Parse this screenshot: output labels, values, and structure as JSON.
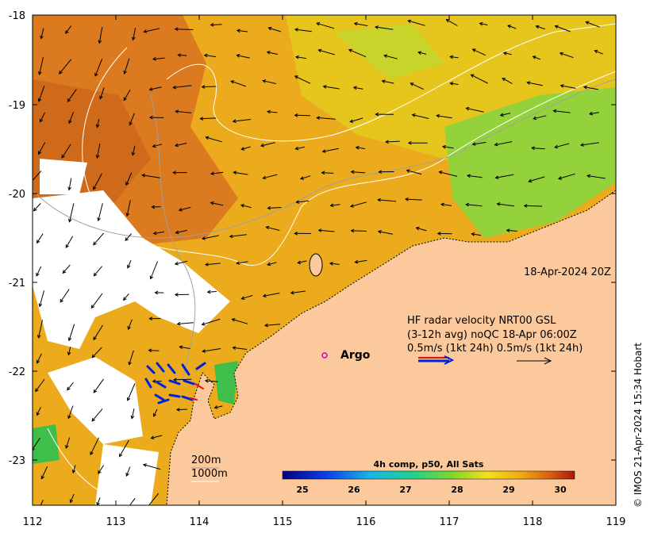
{
  "map": {
    "date_label": "18-Apr-2024 20Z",
    "radar": {
      "line1": "HF radar velocity  NRT00 GSL",
      "line2": "(3-12h avg) noQC 18-Apr 06:00Z",
      "line3": "0.5m/s (1kt 24h)   0.5m/s (1kt 24h)"
    },
    "argo_label": "Argo",
    "depth_labels": [
      "200m",
      "1000m"
    ],
    "credit": "© IMOS 21-Apr-2024 15:34 Hobart",
    "colorbar": {
      "title": "4h comp, p50, All Sats",
      "ticks": [
        "25",
        "26",
        "27",
        "28",
        "29",
        "30"
      ]
    },
    "x_ticks": [
      "112",
      "113",
      "114",
      "115",
      "116",
      "117",
      "118",
      "119"
    ],
    "y_ticks": [
      "-18",
      "-19",
      "-20",
      "-21",
      "-22",
      "-23"
    ],
    "colors": {
      "land": "#fbc99b",
      "warm": "#d9731c",
      "mid": "#eda218",
      "cool": "#e7c21a",
      "green": "#8bd23a",
      "no_data": "#ffffff"
    }
  }
}
